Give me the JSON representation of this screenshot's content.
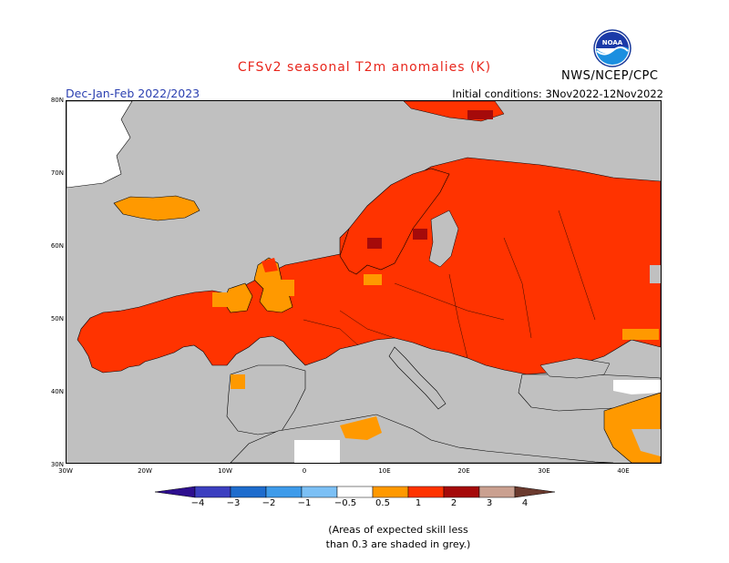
{
  "title": "CFSv2 seasonal T2m anomalies (K)",
  "period": "Dec-Jan-Feb 2022/2023",
  "initial_conditions": "Initial conditions: 3Nov2022-12Nov2022",
  "organization": "NWS/NCEP/CPC",
  "logo_text": "NOAA",
  "lat_labels": [
    "80N",
    "70N",
    "60N",
    "50N",
    "40N",
    "30N"
  ],
  "lon_labels": [
    "30W",
    "20W",
    "10W",
    "0",
    "10E",
    "20E",
    "30E",
    "40E"
  ],
  "colorbar": {
    "labels": [
      "−4",
      "−3",
      "−2",
      "−1",
      "−0.5",
      "0.5",
      "1",
      "2",
      "3",
      "4"
    ],
    "colors": [
      "#2e0f8f",
      "#3c3fc0",
      "#1e6ccd",
      "#3e9bea",
      "#7cc0f5",
      "#ffffff",
      "#ff9900",
      "#ff3300",
      "#a50a0a",
      "#caa090",
      "#6b3a2e"
    ]
  },
  "footnote": [
    "(Areas of expected skill less",
    "than 0.3 are shaded in grey.)"
  ],
  "map_colors": {
    "unskilled": "#c0c0c0",
    "near_normal": "#ffffff",
    "anom_0_5_to_1": "#ff9900",
    "anom_1_to_2": "#ff3300",
    "anom_2_to_3": "#a50a0a"
  }
}
